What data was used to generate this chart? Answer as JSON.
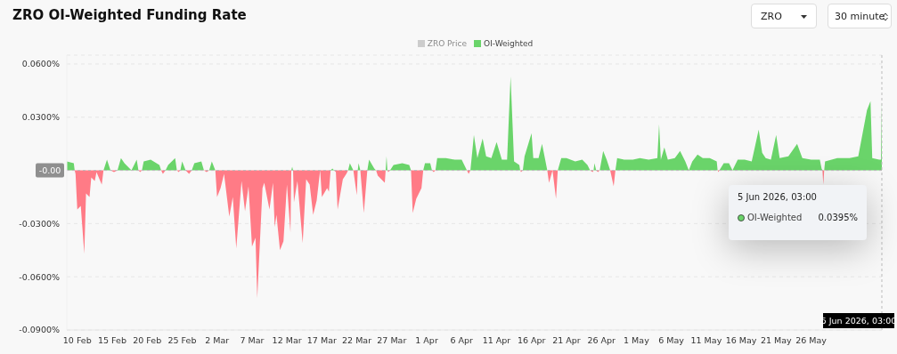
{
  "chart_data": {
    "type": "area",
    "title": "ZRO OI-Weighted Funding Rate",
    "xlim": [
      "2026-02-08T12:00",
      "2026-06-05T03:00"
    ],
    "xticks": [
      {
        "value": "2026-02-10",
        "label": "10 Feb"
      },
      {
        "value": "2026-02-15",
        "label": "15 Feb"
      },
      {
        "value": "2026-02-20",
        "label": "20 Feb"
      },
      {
        "value": "2026-02-25",
        "label": "25 Feb"
      },
      {
        "value": "2026-03-02",
        "label": "2 Mar"
      },
      {
        "value": "2026-03-07",
        "label": "7 Mar"
      },
      {
        "value": "2026-03-12",
        "label": "12 Mar"
      },
      {
        "value": "2026-03-17",
        "label": "17 Mar"
      },
      {
        "value": "2026-03-22",
        "label": "22 Mar"
      },
      {
        "value": "2026-03-27",
        "label": "27 Mar"
      },
      {
        "value": "2026-04-01",
        "label": "1 Apr"
      },
      {
        "value": "2026-04-06",
        "label": "6 Apr"
      },
      {
        "value": "2026-04-11",
        "label": "11 Apr"
      },
      {
        "value": "2026-04-16",
        "label": "16 Apr"
      },
      {
        "value": "2026-04-21",
        "label": "21 Apr"
      },
      {
        "value": "2026-04-26",
        "label": "26 Apr"
      },
      {
        "value": "2026-05-01",
        "label": "1 May"
      },
      {
        "value": "2026-05-06",
        "label": "6 May"
      },
      {
        "value": "2026-05-11",
        "label": "11 May"
      },
      {
        "value": "2026-05-16",
        "label": "16 May"
      },
      {
        "value": "2026-05-21",
        "label": "21 May"
      },
      {
        "value": "2026-05-26",
        "label": "26 May"
      }
    ],
    "ylim": [
      -0.09,
      0.065
    ],
    "yticks": [
      {
        "value": 0.06,
        "label": "0.0600%"
      },
      {
        "value": 0.03,
        "label": "0.0300%"
      },
      {
        "value": -0.03,
        "label": "-0.0300%"
      },
      {
        "value": -0.06,
        "label": "-0.0600%"
      },
      {
        "value": -0.09,
        "label": "-0.0900%"
      }
    ],
    "grid": "y",
    "legend": "top",
    "ref_lines": [
      {
        "axis": "y",
        "value": 0,
        "label": "-0.00"
      },
      {
        "axis": "x",
        "value": "2026-06-05T03:00",
        "label": "5 Jun 2026, 03:00"
      }
    ],
    "annotations": [
      "ZRO",
      "30 minute",
      "5 Jun 2026, 03:00",
      "OI-Weighted",
      "0.0395%"
    ],
    "series": [
      {
        "name": "ZRO Price",
        "color": "#cccccc"
      },
      {
        "name": "OI-Weighted",
        "color": "#6ad46a",
        "x": [
          "2026-02-08T12:00",
          "2026-02-09T12:00",
          "2026-02-09T15:00",
          "2026-02-13T18:00",
          "2026-02-14T06:00",
          "2026-02-14T18:00",
          "2026-02-15T18:00",
          "2026-02-16T06:00",
          "2026-02-16T18:00",
          "2026-02-17T18:00",
          "2026-02-18T12:00",
          "2026-02-18T18:00",
          "2026-02-19T06:00",
          "2026-02-19T12:00",
          "2026-02-20T12:00",
          "2026-02-21T18:00",
          "2026-02-22T00:00",
          "2026-02-22T15:00",
          "2026-02-23T00:00",
          "2026-02-24T00:00",
          "2026-02-24T06:00",
          "2026-02-24T18:00",
          "2026-02-25T00:00",
          "2026-02-25T12:00",
          "2026-02-26T09:00",
          "2026-02-26T18:00",
          "2026-02-27T18:00",
          "2026-02-28T03:00",
          "2026-02-28T21:00",
          "2026-03-01T06:00",
          "2026-03-01T18:00",
          "2026-03-12T15:00",
          "2026-03-12T18:00",
          "2026-03-12T21:00",
          "2026-03-16T18:00",
          "2026-03-18T06:00",
          "2026-03-18T12:00",
          "2026-03-18T18:00",
          "2026-03-20T18:00",
          "2026-03-21T00:00",
          "2026-03-21T12:00",
          "2026-03-22T03:00",
          "2026-03-22T06:00",
          "2026-03-22T12:00",
          "2026-03-23T12:00",
          "2026-03-23T18:00",
          "2026-03-24T12:00",
          "2026-03-24T18:00",
          "2026-03-26T03:00",
          "2026-03-26T06:00",
          "2026-03-26T09:00",
          "2026-03-26T18:00",
          "2026-03-27T06:00",
          "2026-03-28T12:00",
          "2026-03-29T12:00",
          "2026-03-29T18:00",
          "2026-03-31T12:00",
          "2026-03-31T18:00",
          "2026-04-01T12:00",
          "2026-04-01T18:00",
          "2026-04-02T06:00",
          "2026-04-02T12:00",
          "2026-04-03T18:00",
          "2026-04-05T00:00",
          "2026-04-06T00:00",
          "2026-04-06T18:00",
          "2026-04-07T06:00",
          "2026-04-07T18:00",
          "2026-04-08T06:00",
          "2026-04-09T00:00",
          "2026-04-09T12:00",
          "2026-04-10T06:00",
          "2026-04-11T00:00",
          "2026-04-11T18:00",
          "2026-04-12T12:00",
          "2026-04-13T00:00",
          "2026-04-13T12:00",
          "2026-04-14T06:00",
          "2026-04-14T09:00",
          "2026-04-14T18:00",
          "2026-04-15T00:00",
          "2026-04-16T00:00",
          "2026-04-16T06:00",
          "2026-04-17T00:00",
          "2026-04-17T12:00",
          "2026-04-18T00:00",
          "2026-04-18T06:00",
          "2026-04-19T00:00",
          "2026-04-19T18:00",
          "2026-04-20T06:00",
          "2026-04-21T00:00",
          "2026-04-22T06:00",
          "2026-04-23T06:00",
          "2026-04-24T00:00",
          "2026-04-24T09:00",
          "2026-04-24T21:00",
          "2026-04-25T00:00",
          "2026-04-25T06:00",
          "2026-04-25T18:00",
          "2026-04-26T06:00",
          "2026-04-26T18:00",
          "2026-04-27T06:00",
          "2026-04-28T00:00",
          "2026-04-28T06:00",
          "2026-04-29T06:00",
          "2026-04-30T12:00",
          "2026-05-01T12:00",
          "2026-05-02T18:00",
          "2026-05-04T00:00",
          "2026-05-04T06:00",
          "2026-05-04T12:00",
          "2026-05-05T00:00",
          "2026-05-05T12:00",
          "2026-05-06T12:00",
          "2026-05-07T06:00",
          "2026-05-08T00:00",
          "2026-05-08T12:00",
          "2026-05-09T00:00",
          "2026-05-09T18:00",
          "2026-05-10T12:00",
          "2026-05-11T12:00",
          "2026-05-12T12:00",
          "2026-05-12T15:00",
          "2026-05-12T21:00",
          "2026-05-13T12:00",
          "2026-05-14T06:00",
          "2026-05-14T18:00",
          "2026-05-15T12:00",
          "2026-05-16T12:00",
          "2026-05-17T12:00",
          "2026-05-18T00:00",
          "2026-05-18T12:00",
          "2026-05-19T00:00",
          "2026-05-19T12:00",
          "2026-05-20T06:00",
          "2026-05-21T00:00",
          "2026-05-21T12:00",
          "2026-05-22T18:00",
          "2026-05-24T00:00",
          "2026-05-24T18:00",
          "2026-05-26T00:00",
          "2026-05-27T06:00",
          "2026-05-27T12:00",
          "2026-05-27T15:00",
          "2026-05-27T21:00",
          "2026-05-28T00:00",
          "2026-05-29T18:00",
          "2026-05-31T12:00",
          "2026-06-01T18:00",
          "2026-06-03T00:00",
          "2026-06-03T12:00",
          "2026-06-03T18:00",
          "2026-06-04T18:00",
          "2026-06-05T00:00",
          "2026-06-05T03:00"
        ],
        "values": [
          0.005,
          0.004,
          0,
          0,
          0.006,
          0,
          0,
          0.007,
          0.004,
          0,
          0.006,
          0,
          0,
          0.005,
          0.006,
          0.003,
          0,
          0,
          0.003,
          0.007,
          0,
          0,
          0.005,
          0,
          0,
          0.004,
          0.005,
          0,
          0,
          0.005,
          0,
          0,
          0.002,
          0,
          0,
          0,
          0.001,
          0,
          0,
          0.004,
          0,
          0,
          0.004,
          0,
          0,
          0.006,
          0.001,
          0,
          0,
          0.008,
          0,
          0,
          0.003,
          0.004,
          0.003,
          0,
          0,
          0.004,
          0.004,
          0,
          0,
          0.007,
          0.007,
          0.006,
          0.006,
          0,
          0,
          0.02,
          0.007,
          0.018,
          0.008,
          0.007,
          0.016,
          0.006,
          0.006,
          0.053,
          0.005,
          0.003,
          0,
          0,
          0.008,
          0.021,
          0.007,
          0.007,
          0.015,
          0.005,
          0,
          0,
          0,
          0.007,
          0.007,
          0.005,
          0.006,
          0.003,
          0,
          0,
          0.004,
          0,
          0,
          0.011,
          0.006,
          0,
          0,
          0.007,
          0.006,
          0.006,
          0.007,
          0.006,
          0.007,
          0.026,
          0.006,
          0.013,
          0.006,
          0.007,
          0.011,
          0.005,
          0,
          0.005,
          0.009,
          0.007,
          0.007,
          0.005,
          0,
          0,
          0.004,
          0.004,
          0,
          0.006,
          0.006,
          0.005,
          0.014,
          0.023,
          0.01,
          0.007,
          0.006,
          0.02,
          0.007,
          0.008,
          0.015,
          0.007,
          0.006,
          0.006,
          0.001,
          0,
          0,
          0.005,
          0.007,
          0.007,
          0.008,
          0.034,
          0.039,
          0.007,
          0.006,
          0.006,
          0.0395
        ]
      },
      {
        "color": "#ff7b86",
        "x": [
          "2026-02-09T15:00",
          "2026-02-09T18:00",
          "2026-02-10T00:00",
          "2026-02-10T12:00",
          "2026-02-11T00:00",
          "2026-02-11T06:00",
          "2026-02-11T18:00",
          "2026-02-12T00:00",
          "2026-02-12T12:00",
          "2026-02-12T18:00",
          "2026-02-13T12:00",
          "2026-02-13T18:00",
          "2026-02-14T18:00",
          "2026-02-15T06:00",
          "2026-02-15T18:00",
          "2026-02-18T18:00",
          "2026-02-19T00:00",
          "2026-02-19T06:00",
          "2026-02-22T00:00",
          "2026-02-22T06:00",
          "2026-02-22T15:00",
          "2026-02-24T06:00",
          "2026-02-24T12:00",
          "2026-02-24T18:00",
          "2026-02-25T12:00",
          "2026-02-26T00:00",
          "2026-02-26T09:00",
          "2026-02-28T03:00",
          "2026-02-28T12:00",
          "2026-02-28T21:00",
          "2026-03-01T18:00",
          "2026-03-02T00:00",
          "2026-03-02T12:00",
          "2026-03-03T00:00",
          "2026-03-03T06:00",
          "2026-03-03T18:00",
          "2026-03-04T06:00",
          "2026-03-04T18:00",
          "2026-03-05T12:00",
          "2026-03-06T00:00",
          "2026-03-06T12:00",
          "2026-03-07T00:00",
          "2026-03-07T12:00",
          "2026-03-07T18:00",
          "2026-03-08T12:00",
          "2026-03-08T18:00",
          "2026-03-09T12:00",
          "2026-03-10T00:00",
          "2026-03-10T06:00",
          "2026-03-10T12:00",
          "2026-03-11T00:00",
          "2026-03-11T12:00",
          "2026-03-12T00:00",
          "2026-03-12T12:00",
          "2026-03-12T15:00",
          "2026-03-12T21:00",
          "2026-03-13T00:00",
          "2026-03-13T12:00",
          "2026-03-14T06:00",
          "2026-03-14T18:00",
          "2026-03-15T06:00",
          "2026-03-15T18:00",
          "2026-03-16T06:00",
          "2026-03-16T18:00",
          "2026-03-17T00:00",
          "2026-03-17T18:00",
          "2026-03-18T00:00",
          "2026-03-18T06:00",
          "2026-03-18T18:00",
          "2026-03-19T00:00",
          "2026-03-19T06:00",
          "2026-03-20T00:00",
          "2026-03-20T12:00",
          "2026-03-20T18:00",
          "2026-03-21T12:00",
          "2026-03-22T00:00",
          "2026-03-22T03:00",
          "2026-03-22T12:00",
          "2026-03-23T00:00",
          "2026-03-23T12:00",
          "2026-03-24T18:00",
          "2026-03-25T00:00",
          "2026-03-26T00:00",
          "2026-03-26T03:00",
          "2026-03-26T09:00",
          "2026-03-26T12:00",
          "2026-03-26T18:00",
          "2026-03-29T18:00",
          "2026-03-30T00:00",
          "2026-03-30T12:00",
          "2026-03-31T06:00",
          "2026-03-31T12:00",
          "2026-04-01T18:00",
          "2026-04-02T00:00",
          "2026-04-02T06:00",
          "2026-04-06T18:00",
          "2026-04-07T00:00",
          "2026-04-07T06:00",
          "2026-04-14T09:00",
          "2026-04-14T12:00",
          "2026-04-14T18:00",
          "2026-04-18T06:00",
          "2026-04-18T12:00",
          "2026-04-19T00:00",
          "2026-04-19T12:00",
          "2026-04-19T18:00",
          "2026-04-24T09:00",
          "2026-04-24T18:00",
          "2026-04-24T21:00",
          "2026-04-25T06:00",
          "2026-04-25T12:00",
          "2026-04-25T18:00",
          "2026-04-27T06:00",
          "2026-04-27T18:00",
          "2026-04-28T00:00",
          "2026-05-12T15:00",
          "2026-05-12T18:00",
          "2026-05-12T21:00",
          "2026-05-27T15:00",
          "2026-05-27T18:00",
          "2026-05-27T21:00"
        ],
        "values": [
          0,
          -0.002,
          -0.022,
          -0.02,
          -0.047,
          -0.013,
          -0.015,
          -0.004,
          -0.006,
          -0.001,
          -0.008,
          0,
          0,
          -0.001,
          0,
          0,
          -0.001,
          0,
          0,
          -0.002,
          0,
          0,
          -0.001,
          0,
          0,
          -0.002,
          0,
          0,
          -0.001,
          0,
          0,
          -0.015,
          -0.01,
          -0.002,
          -0.01,
          -0.026,
          -0.015,
          -0.044,
          -0.006,
          -0.023,
          -0.009,
          -0.043,
          -0.038,
          -0.072,
          -0.01,
          -0.007,
          -0.022,
          -0.007,
          -0.032,
          -0.025,
          -0.045,
          -0.04,
          -0.008,
          -0.035,
          0,
          0,
          -0.018,
          -0.006,
          -0.041,
          -0.005,
          -0.008,
          -0.025,
          -0.017,
          0,
          -0.015,
          -0.01,
          -0.012,
          0,
          0,
          -0.001,
          -0.022,
          -0.005,
          -0.002,
          0,
          0,
          -0.014,
          0,
          0,
          -0.024,
          0,
          0,
          -0.003,
          -0.007,
          0,
          0,
          -0.001,
          0,
          0,
          -0.024,
          -0.016,
          -0.01,
          0,
          0,
          -0.001,
          0,
          0,
          -0.002,
          0,
          0,
          -0.001,
          0,
          0,
          -0.007,
          0,
          -0.016,
          0,
          0,
          -0.001,
          0,
          0,
          -0.001,
          0,
          0,
          -0.009,
          0,
          0,
          -0.001,
          0,
          0,
          -0.008,
          0
        ]
      }
    ]
  }
}
